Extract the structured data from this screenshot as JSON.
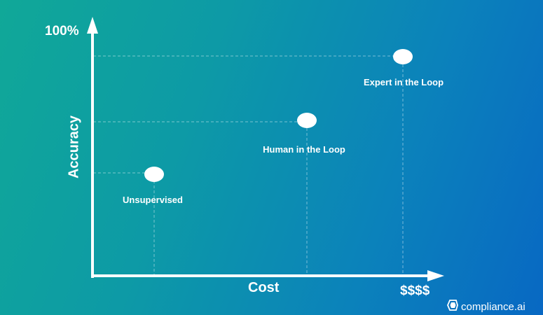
{
  "diagram": {
    "y_axis_label": "Accuracy",
    "x_axis_label": "Cost",
    "y_max_label": "100%",
    "x_max_label": "$$$$",
    "points": [
      {
        "label": "Unsupervised"
      },
      {
        "label": "Human in the Loop"
      },
      {
        "label": "Expert in the Loop"
      }
    ]
  },
  "logo": {
    "text": "compliance.ai",
    "icon": "compliance-logo-icon"
  },
  "colors": {
    "background_start": "#10a898",
    "background_end": "#0868c3",
    "foreground": "#ffffff"
  }
}
